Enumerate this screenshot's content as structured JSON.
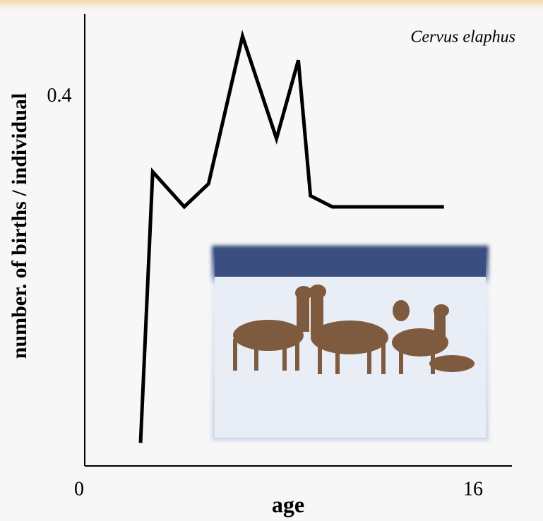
{
  "chart_data": {
    "type": "line",
    "annotation": "Cervus elaphus",
    "x_label": "age",
    "y_label": "number. of births / individual",
    "x": [
      2.3,
      2.8,
      4.1,
      5.1,
      6.5,
      7.9,
      8.8,
      9.3,
      10.2,
      14.8
    ],
    "series": [
      {
        "color": "#000000",
        "values": [
          0.025,
          0.319,
          0.281,
          0.306,
          0.466,
          0.355,
          0.44,
          0.293,
          0.281,
          0.281
        ]
      }
    ],
    "xlim": [
      0,
      17.6
    ],
    "ylim": [
      0,
      0.49
    ],
    "xticks": [
      0,
      16
    ],
    "yticks": [
      0.4
    ],
    "grid": false
  }
}
